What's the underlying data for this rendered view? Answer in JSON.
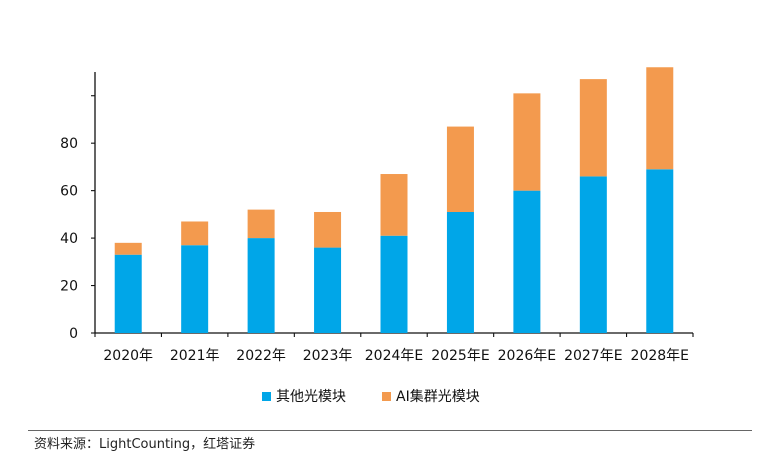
{
  "chart_data": {
    "type": "bar",
    "stacked": true,
    "categories": [
      "2020年",
      "2021年",
      "2022年",
      "2023年",
      "2024年E",
      "2025年E",
      "2026年E",
      "2027年E",
      "2028年E"
    ],
    "series": [
      {
        "name": "其他光模块",
        "color": "#00A6E8",
        "values": [
          33,
          37,
          40,
          36,
          41,
          51,
          60,
          66,
          69
        ]
      },
      {
        "name": "AI集群光模块",
        "color": "#F39A4E",
        "values": [
          5,
          10,
          12,
          15,
          26,
          36,
          41,
          41,
          43
        ]
      }
    ],
    "y_ticks": [
      0,
      20,
      40,
      60,
      80
    ],
    "ylim": [
      0,
      110
    ],
    "grid": false,
    "legend_position": "bottom-center"
  },
  "source": "资料来源：LightCounting，红塔证券"
}
